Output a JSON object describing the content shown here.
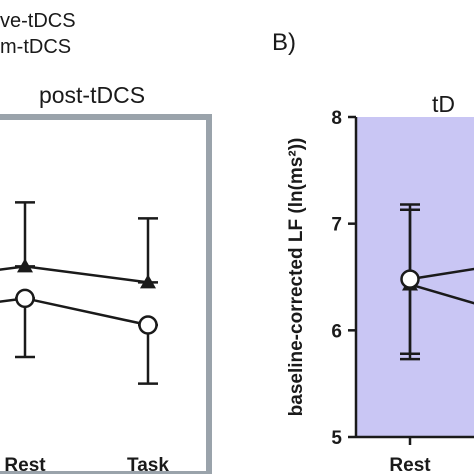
{
  "legend": {
    "items": [
      {
        "label": "ve-tDCS",
        "marker": "filled-triangle"
      },
      {
        "label": "m-tDCS",
        "marker": "open-circle"
      }
    ]
  },
  "panel_letter": "B)",
  "chart_data": [
    {
      "type": "line",
      "panel": "A",
      "title": "post-tDCS",
      "categories": [
        "Rest",
        "Task"
      ],
      "panel_color": "#ffffff",
      "border_color": "#9aa3ab",
      "series": [
        {
          "name": "ve-tDCS",
          "marker": "filled-triangle",
          "values": [
            6.6,
            6.45
          ],
          "error": [
            0.6,
            0.6
          ]
        },
        {
          "name": "m-tDCS",
          "marker": "open-circle",
          "values": [
            6.3,
            6.05
          ],
          "error": [
            0.55,
            0.55
          ]
        }
      ]
    },
    {
      "type": "line",
      "panel": "B",
      "title": "tD",
      "ylabel": "baseline-corrected LF (ln(ms²))",
      "ylim": [
        5,
        8
      ],
      "yticks": [
        "8",
        "7",
        "6",
        "5"
      ],
      "categories": [
        "Rest"
      ],
      "panel_color": "#c9c6f4",
      "series": [
        {
          "name": "ve-tDCS",
          "marker": "filled-triangle",
          "values": [
            6.43
          ],
          "error": [
            0.7
          ]
        },
        {
          "name": "m-tDCS",
          "marker": "open-circle",
          "values": [
            6.48
          ],
          "error": [
            0.7
          ]
        }
      ]
    }
  ],
  "colors": {
    "line": "#1a1a1a",
    "panelA_border": "#9aa3ab",
    "panelB_bg": "#c9c6f4"
  }
}
